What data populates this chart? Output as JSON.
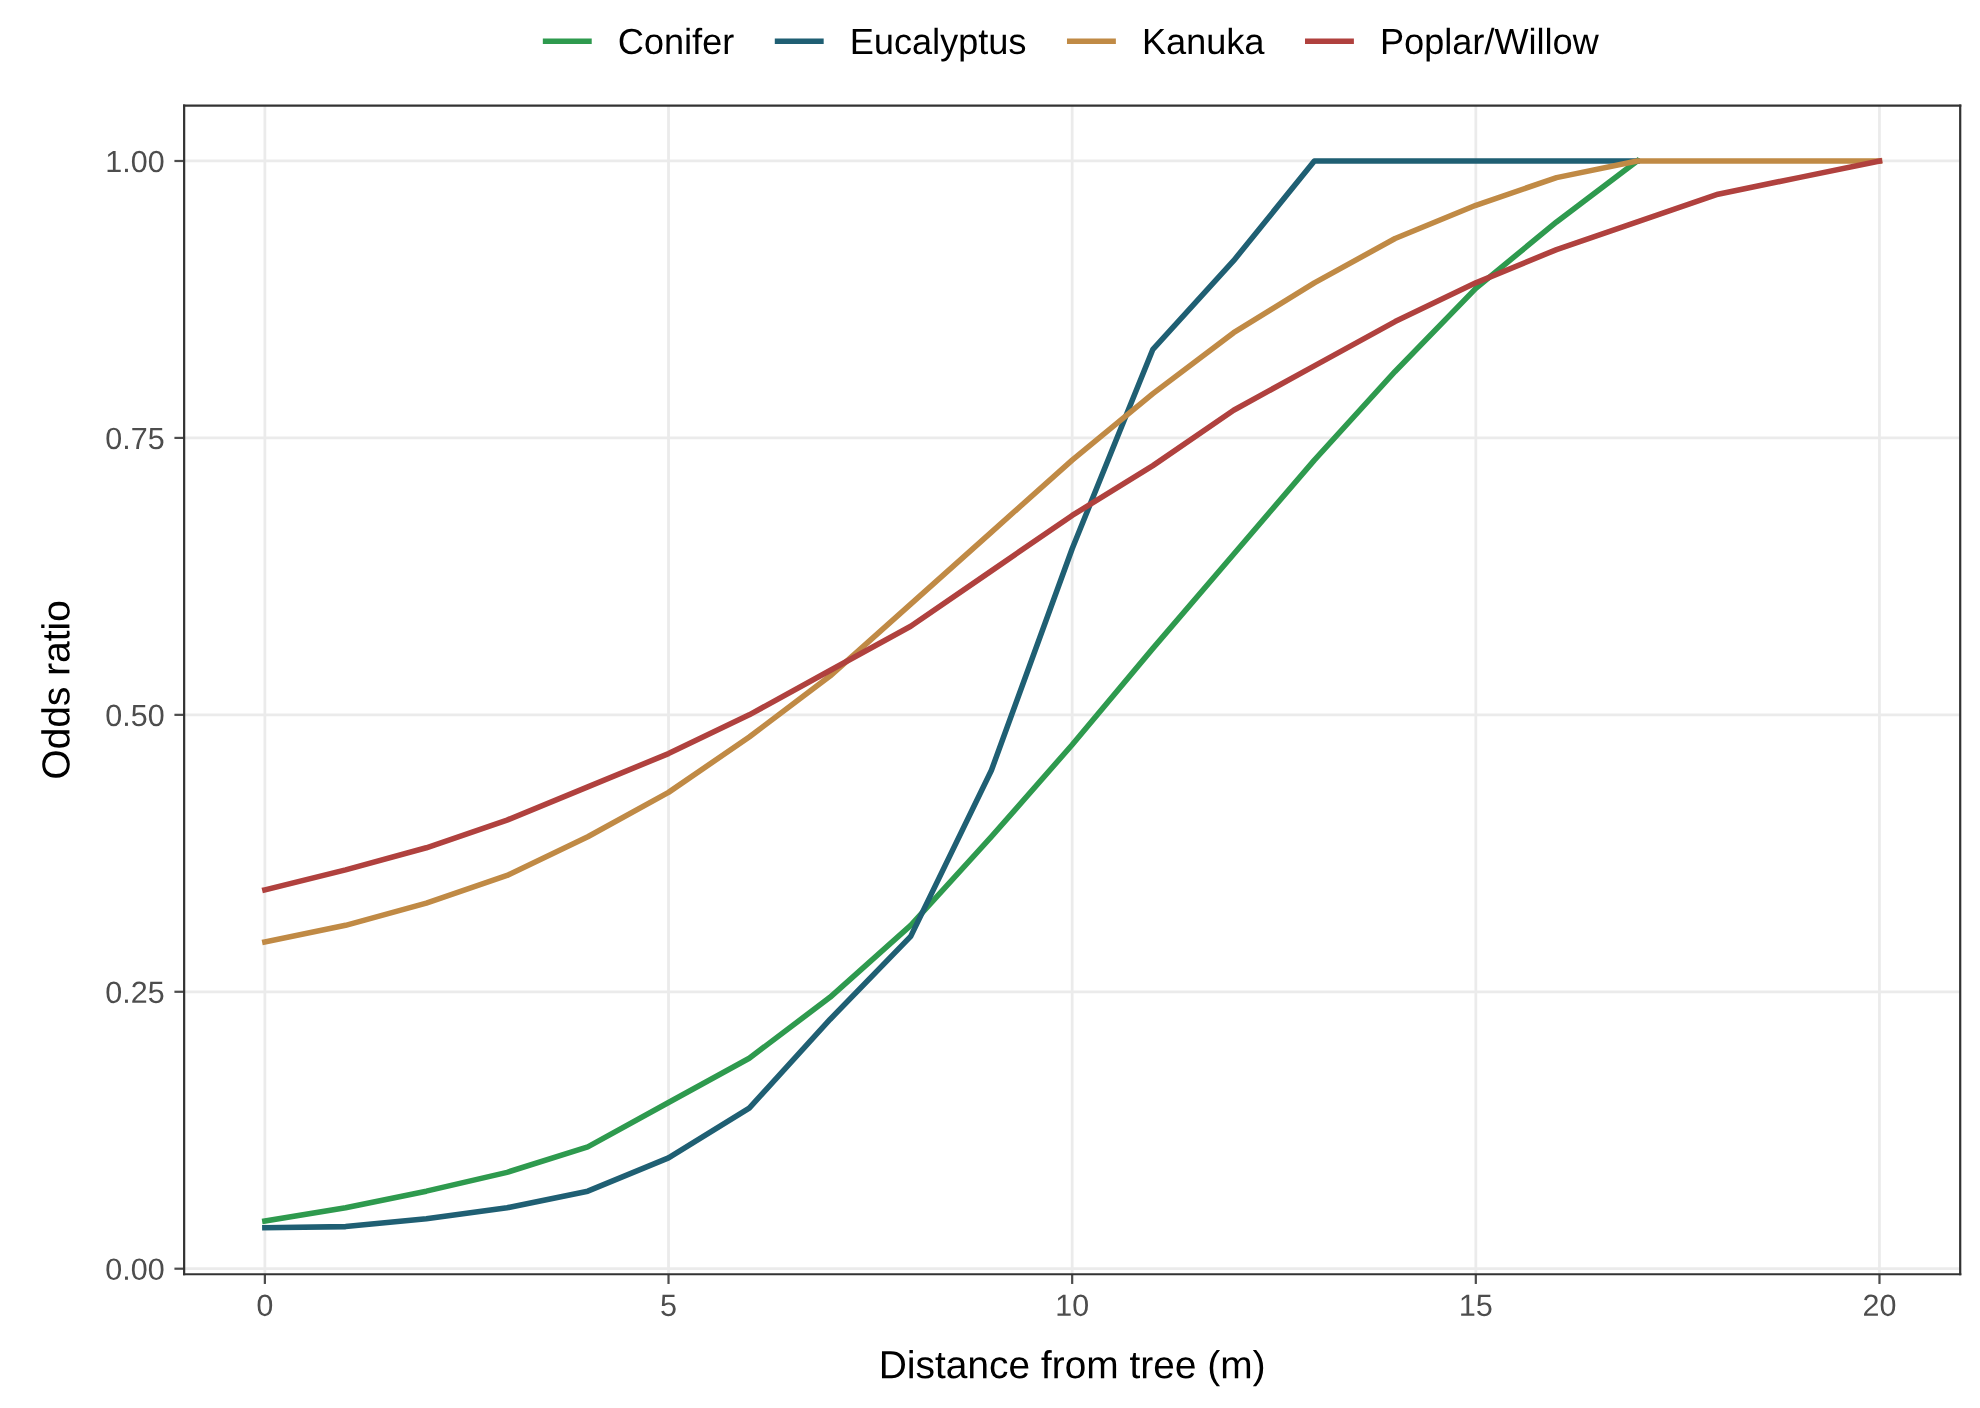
{
  "chart_data": {
    "type": "line",
    "xlabel": "Distance from tree (m)",
    "ylabel": "Odds ratio",
    "xlim": [
      -1,
      21
    ],
    "ylim": [
      -0.005,
      1.05
    ],
    "xticks": [
      0,
      5,
      10,
      15,
      20
    ],
    "yticks": [
      {
        "value": 0,
        "label": "0.00"
      },
      {
        "value": 0.25,
        "label": "0.25"
      },
      {
        "value": 0.5,
        "label": "0.50"
      },
      {
        "value": 0.75,
        "label": "0.75"
      },
      {
        "value": 1,
        "label": "1.00"
      }
    ],
    "grid": true,
    "legend": "top",
    "line_style": "solid",
    "marker": "none",
    "series": [
      {
        "name": "Conifer",
        "color": "#2e9a4e",
        "x": [
          0,
          1,
          2,
          3,
          4,
          5,
          6,
          7,
          8,
          9,
          10,
          11,
          12,
          13,
          14,
          15,
          16,
          17
        ],
        "values": [
          0.043,
          0.055,
          0.07,
          0.087,
          0.11,
          0.15,
          0.19,
          0.245,
          0.31,
          0.39,
          0.473,
          0.56,
          0.645,
          0.73,
          0.81,
          0.885,
          0.945,
          1.0
        ]
      },
      {
        "name": "Eucalyptus",
        "color": "#1f5f73",
        "x": [
          0,
          1,
          2,
          3,
          4,
          5,
          6,
          7,
          8,
          9,
          10,
          11,
          12,
          13,
          14,
          15,
          16,
          17
        ],
        "values": [
          0.037,
          0.038,
          0.045,
          0.055,
          0.07,
          0.1,
          0.145,
          0.225,
          0.3,
          0.45,
          0.65,
          0.83,
          0.91,
          1.0,
          1.0,
          1.0,
          1.0,
          1.0
        ]
      },
      {
        "name": "Kanuka",
        "color": "#c08a45",
        "x": [
          0,
          1,
          2,
          3,
          4,
          5,
          6,
          7,
          8,
          9,
          10,
          11,
          12,
          13,
          14,
          15,
          16,
          17,
          18,
          19,
          20
        ],
        "values": [
          0.295,
          0.31,
          0.33,
          0.355,
          0.39,
          0.43,
          0.48,
          0.535,
          0.6,
          0.665,
          0.73,
          0.79,
          0.845,
          0.89,
          0.93,
          0.96,
          0.985,
          1.0,
          1.0,
          1.0,
          1.0
        ]
      },
      {
        "name": "Poplar/Willow",
        "color": "#b0413e",
        "x": [
          0,
          1,
          2,
          3,
          4,
          5,
          6,
          7,
          8,
          9,
          10,
          11,
          12,
          13,
          14,
          15,
          16,
          17,
          18,
          19,
          20
        ],
        "values": [
          0.342,
          0.36,
          0.38,
          0.405,
          0.435,
          0.465,
          0.5,
          0.54,
          0.58,
          0.63,
          0.68,
          0.725,
          0.775,
          0.815,
          0.855,
          0.89,
          0.92,
          0.945,
          0.97,
          0.985,
          1.0
        ]
      }
    ]
  }
}
